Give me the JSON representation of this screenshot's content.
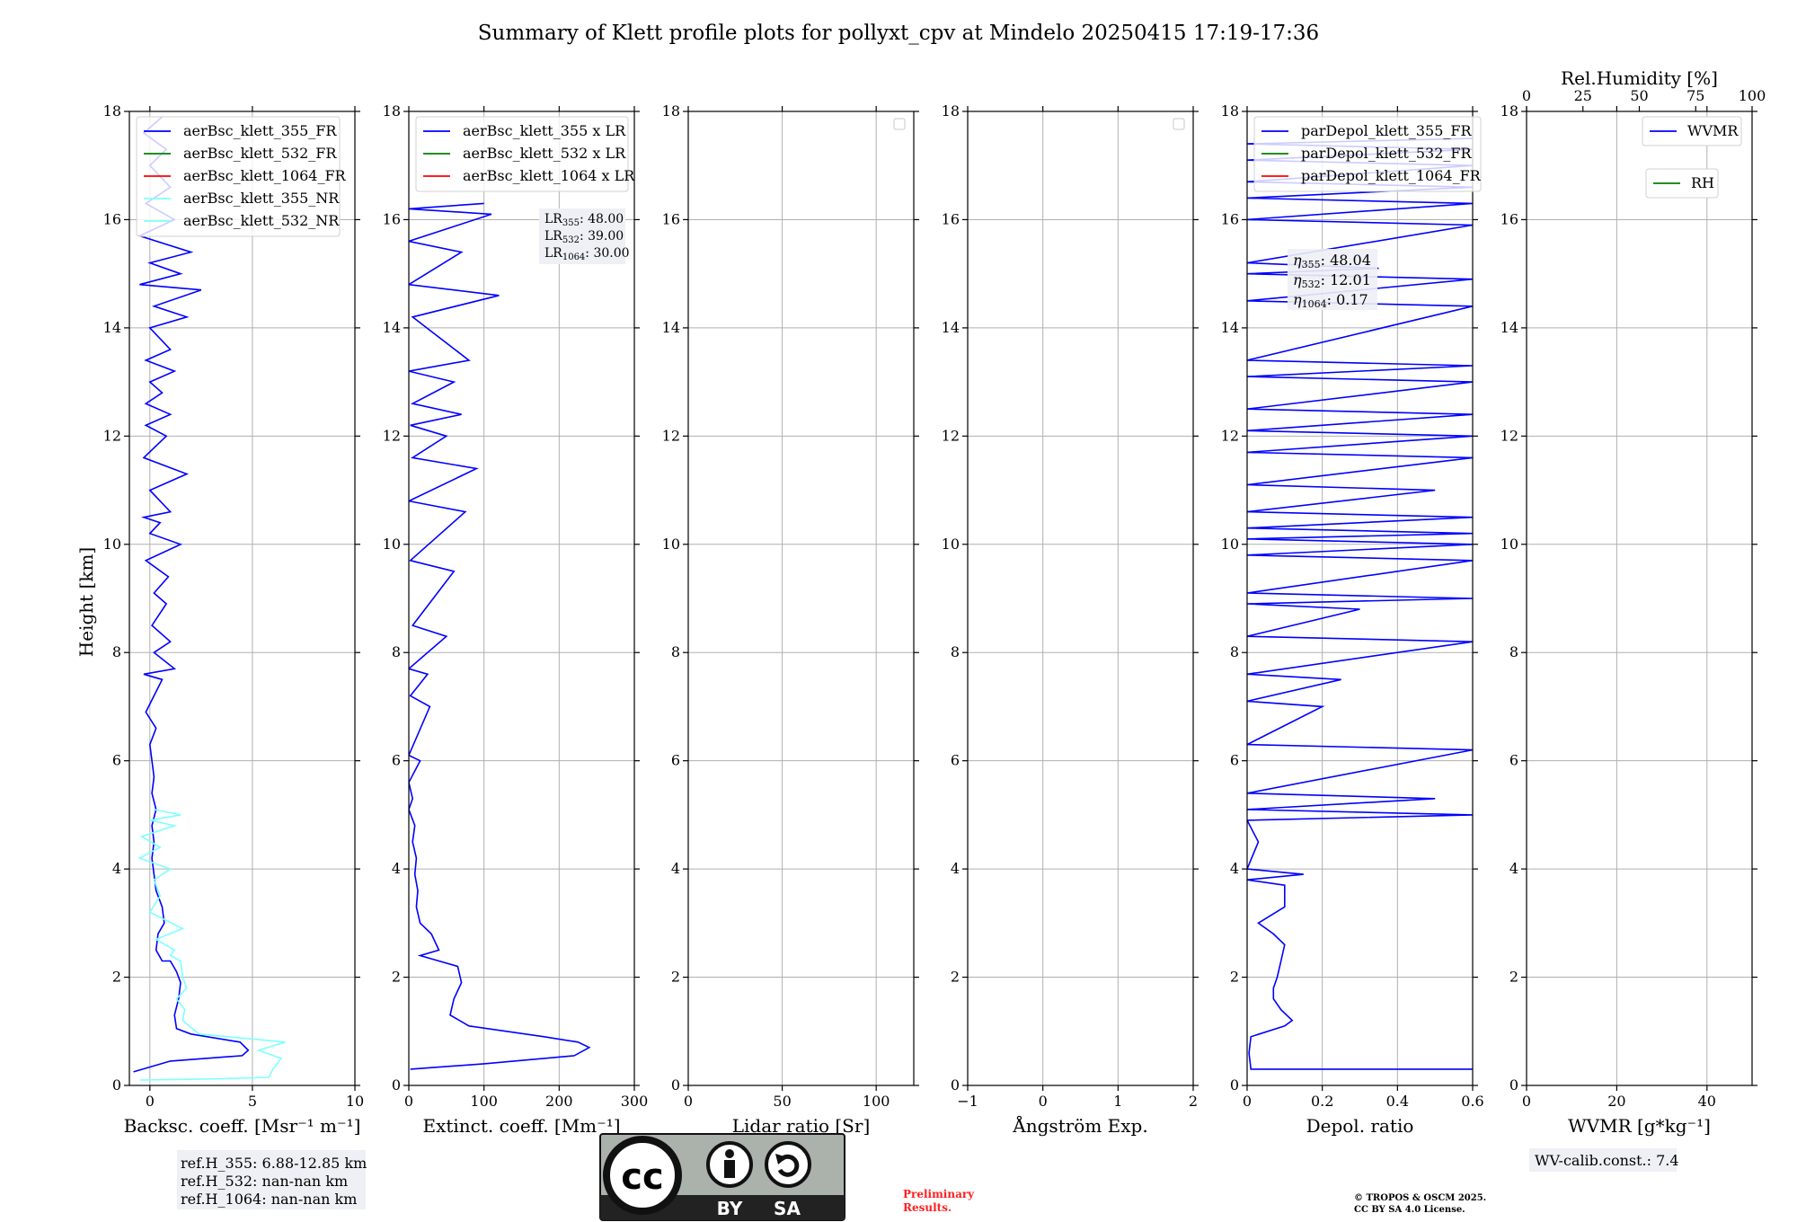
{
  "figure": {
    "title": "Summary of Klett profile plots for pollyxt_cpv at Mindelo 20250415 17:19-17:36",
    "ylabel": "Height [km]",
    "ref_box": [
      "ref.H_355: 6.88-12.85 km",
      "ref.H_532: nan-nan km",
      "ref.H_1064: nan-nan km"
    ],
    "lr_box": [
      {
        "main": "LR",
        "sub": "355",
        "val": ": 48.00"
      },
      {
        "main": "LR",
        "sub": "532",
        "val": ": 39.00"
      },
      {
        "main": "LR",
        "sub": "1064",
        "val": ": 30.00"
      }
    ],
    "eta_box": [
      {
        "main": "η",
        "sub": "355",
        "val": ": 48.04"
      },
      {
        "main": "η",
        "sub": "532",
        "val": ": 12.01"
      },
      {
        "main": "η",
        "sub": "1064",
        "val": ": 0.17"
      }
    ],
    "wv_calib": "WV-calib.const.: 7.4",
    "preliminary": [
      "Preliminary",
      "Results."
    ],
    "copyright": [
      "© TROPOS & OSCM 2025.",
      "CC BY SA 4.0 License."
    ],
    "license_badge": {
      "labels": [
        "BY",
        "SA"
      ],
      "icon": "cc-by-sa-icon",
      "cc_text": "cc"
    },
    "colors": {
      "blue": "#0000ff",
      "green": "#008000",
      "red": "#ff0000",
      "cyan": "#7fffff",
      "grid": "#b0b0b0"
    }
  },
  "chart_data": [
    {
      "type": "line",
      "xlabel": "Backsc. coeff. [Msr⁻¹ m⁻¹]",
      "xlim": [
        -1,
        10
      ],
      "ylim": [
        0,
        18
      ],
      "xticks": [
        0,
        5,
        10
      ],
      "yticks": [
        0,
        2,
        4,
        6,
        8,
        10,
        12,
        14,
        16,
        18
      ],
      "legend": {
        "position": "top-left",
        "entries": [
          {
            "label": "aerBsc_klett_355_FR",
            "color": "#0000ff"
          },
          {
            "label": "aerBsc_klett_532_FR",
            "color": "#008000"
          },
          {
            "label": "aerBsc_klett_1064_FR",
            "color": "#ff0000"
          },
          {
            "label": "aerBsc_klett_355_NR",
            "color": "#7fffff"
          },
          {
            "label": "aerBsc_klett_532_NR",
            "color": "#7fffff"
          }
        ]
      },
      "series": [
        {
          "name": "aerBsc_klett_355_FR",
          "color": "#0000ff",
          "x": [
            -0.8,
            1.0,
            4.5,
            4.8,
            4.4,
            2.0,
            1.3,
            1.2,
            1.4,
            1.5,
            1.3,
            1.0,
            0.6,
            0.3,
            0.4,
            0.7,
            0.6,
            0.3,
            0.2,
            0.1,
            0.2,
            0.1,
            0.3,
            0.1,
            0.2,
            0.1,
            0.0,
            0.3,
            -0.2,
            0.2,
            0.6,
            -0.3,
            1.2,
            0.2,
            1.0,
            0.1,
            0.8,
            0.2,
            0.9,
            -0.2,
            1.5,
            0.0,
            0.5,
            -0.3,
            1.0,
            0.0,
            1.8,
            -0.3,
            0.8,
            -0.2,
            1.0,
            -0.2,
            0.6,
            0.0,
            1.2,
            -0.2,
            1.0,
            0.0,
            1.8,
            0.2,
            2.5,
            -0.5,
            1.5,
            0.0,
            2.0,
            -0.5,
            1.2,
            -0.2,
            1.0,
            0.0,
            0.8,
            -0.3,
            0.6
          ],
          "y": [
            0.25,
            0.45,
            0.55,
            0.65,
            0.8,
            0.95,
            1.05,
            1.3,
            1.6,
            1.9,
            2.1,
            2.3,
            2.3,
            2.5,
            2.8,
            3.0,
            3.3,
            3.6,
            3.9,
            4.2,
            4.5,
            4.8,
            5.1,
            5.4,
            5.7,
            6.0,
            6.3,
            6.6,
            6.9,
            7.2,
            7.5,
            7.6,
            7.7,
            8.0,
            8.2,
            8.5,
            8.9,
            9.1,
            9.4,
            9.7,
            10.0,
            10.2,
            10.4,
            10.5,
            10.6,
            11.0,
            11.3,
            11.6,
            12.0,
            12.2,
            12.4,
            12.6,
            12.8,
            13.0,
            13.2,
            13.4,
            13.6,
            14.0,
            14.2,
            14.4,
            14.7,
            14.8,
            15.0,
            15.2,
            15.4,
            15.7,
            16.0,
            16.3,
            16.6,
            17.0,
            17.3,
            17.6,
            17.9
          ]
        },
        {
          "name": "aerBsc_klett_355_NR",
          "color": "#7fffff",
          "x": [
            -0.5,
            3.0,
            5.8,
            6.0,
            6.4,
            5.3,
            6.6,
            2.4,
            1.6,
            1.7,
            1.3,
            1.8,
            1.6,
            1.5,
            1.0,
            1.2,
            0.3,
            1.6,
            0.0,
            0.5,
            0.2,
            1.0,
            -0.5,
            0.5,
            -0.4,
            1.2,
            0.0,
            1.5,
            0.2
          ],
          "y": [
            0.1,
            0.12,
            0.15,
            0.3,
            0.5,
            0.65,
            0.8,
            0.95,
            1.2,
            1.4,
            1.6,
            1.8,
            2.0,
            2.3,
            2.4,
            2.5,
            2.7,
            2.9,
            3.2,
            3.5,
            3.8,
            4.0,
            4.2,
            4.4,
            4.6,
            4.8,
            4.9,
            5.0,
            5.1
          ]
        }
      ]
    },
    {
      "type": "line",
      "xlabel": "Extinct. coeff. [Mm⁻¹]",
      "xlim": [
        0,
        300
      ],
      "ylim": [
        0,
        18
      ],
      "xticks": [
        0,
        100,
        200,
        300
      ],
      "yticks": [
        0,
        2,
        4,
        6,
        8,
        10,
        12,
        14,
        16,
        18
      ],
      "legend": {
        "position": "top-left",
        "entries": [
          {
            "label": "aerBsc_klett_355 x LR",
            "color": "#0000ff"
          },
          {
            "label": "aerBsc_klett_532 x LR",
            "color": "#008000"
          },
          {
            "label": "aerBsc_klett_1064 x LR",
            "color": "#ff0000"
          }
        ]
      },
      "series": [
        {
          "name": "aerBsc_klett_355 x LR",
          "color": "#0000ff",
          "x": [
            2,
            100,
            220,
            240,
            225,
            180,
            80,
            55,
            60,
            70,
            65,
            40,
            15,
            40,
            30,
            15,
            10,
            12,
            8,
            10,
            5,
            8,
            0,
            5,
            0,
            15,
            0,
            28,
            2,
            25,
            0,
            50,
            5,
            60,
            2,
            75,
            0,
            90,
            5,
            50,
            2,
            70,
            5,
            60,
            0,
            80,
            5,
            120,
            0,
            70,
            0,
            110,
            0,
            100
          ],
          "y": [
            0.3,
            0.4,
            0.55,
            0.7,
            0.8,
            0.9,
            1.1,
            1.3,
            1.6,
            1.9,
            2.2,
            2.3,
            2.4,
            2.5,
            2.8,
            3.0,
            3.3,
            3.6,
            3.9,
            4.2,
            4.5,
            4.8,
            5.1,
            5.3,
            5.6,
            6.0,
            6.1,
            7.0,
            7.2,
            7.6,
            7.7,
            8.3,
            8.5,
            9.5,
            9.7,
            10.6,
            10.8,
            11.4,
            11.6,
            12.0,
            12.2,
            12.4,
            12.6,
            13.0,
            13.2,
            13.4,
            14.2,
            14.6,
            14.8,
            15.4,
            15.6,
            16.1,
            16.2,
            16.3
          ]
        }
      ],
      "annotation": "LR box"
    },
    {
      "type": "line",
      "xlabel": "Lidar ratio [Sr]",
      "xlim": [
        0,
        120
      ],
      "ylim": [
        0,
        18
      ],
      "xticks": [
        0,
        50,
        100
      ],
      "yticks": [
        0,
        2,
        4,
        6,
        8,
        10,
        12,
        14,
        16,
        18
      ],
      "legend": {
        "position": "top-right",
        "entries": []
      },
      "series": []
    },
    {
      "type": "line",
      "xlabel": "Ångström Exp.",
      "xlim": [
        -1,
        2
      ],
      "ylim": [
        0,
        18
      ],
      "xticks": [
        -1,
        0,
        1,
        2
      ],
      "yticks": [
        0,
        2,
        4,
        6,
        8,
        10,
        12,
        14,
        16,
        18
      ],
      "legend": {
        "position": "top-right",
        "entries": []
      },
      "series": []
    },
    {
      "type": "line",
      "xlabel": "Depol. ratio",
      "xlim": [
        0,
        0.6
      ],
      "ylim": [
        0,
        18
      ],
      "xticks": [
        0,
        0.2,
        0.4,
        0.6
      ],
      "yticks": [
        0,
        2,
        4,
        6,
        8,
        10,
        12,
        14,
        16,
        18
      ],
      "legend": {
        "position": "top-left",
        "entries": [
          {
            "label": "parDepol_klett_355_FR",
            "color": "#0000ff"
          },
          {
            "label": "parDepol_klett_532_FR",
            "color": "#008000"
          },
          {
            "label": "parDepol_klett_1064_FR",
            "color": "#ff0000"
          }
        ]
      },
      "series": [
        {
          "name": "parDepol_klett_355_FR",
          "color": "#0000ff",
          "x": [
            0.6,
            0.01,
            0.005,
            0.01,
            0.1,
            0.12,
            0.09,
            0.07,
            0.07,
            0.08,
            0.09,
            0.1,
            0.07,
            0.03,
            0.1,
            0.1,
            0.0,
            0.15,
            0.0,
            0.03,
            0.0,
            0.6,
            0.0,
            0.5,
            0.0,
            0.6,
            0.0,
            0.2,
            0.0,
            0.25,
            0.0,
            0.6,
            0.0,
            0.3,
            0.0,
            0.6,
            0.0,
            0.6,
            0.0,
            0.6,
            0.0,
            0.6,
            0.0,
            0.6,
            0.0,
            0.5,
            0.0,
            0.6,
            0.0,
            0.6,
            0.0,
            0.6,
            0.0,
            0.6,
            0.0,
            0.6,
            0.0,
            0.6,
            0.0,
            0.6,
            0.0,
            0.35,
            0.0,
            0.6,
            0.0,
            0.6,
            0.0,
            0.6,
            0.0,
            0.6,
            0.0,
            0.6,
            0.0,
            0.6
          ],
          "y": [
            0.3,
            0.3,
            0.6,
            0.9,
            1.1,
            1.2,
            1.4,
            1.6,
            1.8,
            2.0,
            2.3,
            2.6,
            2.8,
            3.0,
            3.3,
            3.7,
            3.8,
            3.9,
            4.0,
            4.5,
            4.9,
            5.0,
            5.1,
            5.3,
            5.4,
            6.2,
            6.3,
            7.0,
            7.1,
            7.5,
            7.6,
            8.2,
            8.3,
            8.8,
            8.9,
            9.0,
            9.1,
            9.7,
            9.8,
            10.0,
            10.1,
            10.2,
            10.3,
            10.5,
            10.6,
            11.0,
            11.1,
            11.6,
            11.7,
            12.0,
            12.1,
            12.4,
            12.5,
            13.0,
            13.1,
            13.3,
            13.4,
            14.4,
            14.5,
            14.9,
            15.0,
            15.1,
            15.2,
            15.9,
            16.0,
            16.3,
            16.4,
            16.6,
            16.7,
            17.0,
            17.1,
            17.3,
            17.4,
            17.5
          ]
        }
      ],
      "annotation": "eta box"
    },
    {
      "type": "line",
      "xlabel": "WVMR [g*kg⁻¹]",
      "x2label": "Rel.Humidity [%]",
      "xlim": [
        0,
        50
      ],
      "x2lim": [
        0,
        100
      ],
      "ylim": [
        0,
        18
      ],
      "xticks": [
        0,
        20,
        40
      ],
      "x2ticks": [
        0,
        25,
        50,
        75,
        100
      ],
      "yticks": [
        0,
        2,
        4,
        6,
        8,
        10,
        12,
        14,
        16,
        18
      ],
      "legend": {
        "position": "top-right",
        "entries": [
          {
            "label": "WVMR",
            "color": "#0000ff"
          },
          {
            "label": "RH",
            "color": "#008000"
          }
        ]
      },
      "series": []
    }
  ]
}
